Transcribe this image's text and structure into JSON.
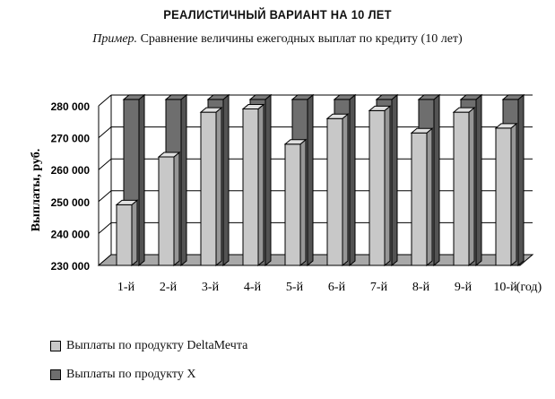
{
  "title": "РЕАЛИСТИЧНЫЙ ВАРИАНТ НА 10 ЛЕТ",
  "subtitle_prefix": "Пример.",
  "subtitle_text": "Сравнение величины ежегодных выплат по кредиту (10 лет)",
  "colors": {
    "series1": "#c8c8c8",
    "series2": "#6e6e6e",
    "floor": "#a8a8a8"
  },
  "chart_data": {
    "type": "bar",
    "title": "РЕАЛИСТИЧНЫЙ ВАРИАНТ НА 10 ЛЕТ",
    "ylabel": "Выплаты, руб.",
    "xlabel": "(год)",
    "ylim": [
      230000,
      280000
    ],
    "yticks": [
      "230 000",
      "240 000",
      "250 000",
      "260 000",
      "270 000",
      "280 000"
    ],
    "categories": [
      "1-й",
      "2-й",
      "3-й",
      "4-й",
      "5-й",
      "6-й",
      "7-й",
      "8-й",
      "9-й",
      "10-й"
    ],
    "grid": true,
    "legend_position": "bottom-left",
    "series": [
      {
        "name": "Выплаты по продукту DeltaМечта",
        "values": [
          249000,
          264000,
          278000,
          279000,
          268000,
          276000,
          278500,
          271500,
          278000,
          273000
        ]
      },
      {
        "name": "Выплаты по продукту X",
        "values": [
          282000,
          282000,
          282000,
          282000,
          282000,
          282000,
          282000,
          282000,
          282000,
          282000
        ]
      }
    ]
  }
}
